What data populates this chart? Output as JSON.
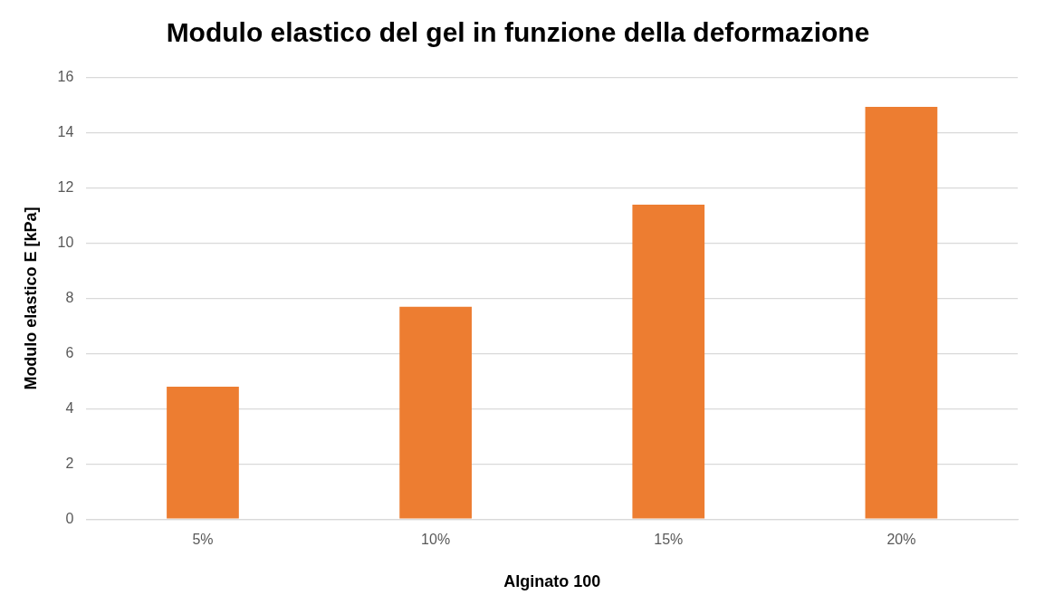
{
  "chart_data": {
    "type": "bar",
    "title": "Modulo elastico del gel in funzione della deformazione",
    "xlabel": "Alginato 100",
    "ylabel": "Modulo elastico E [kPa]",
    "categories": [
      "5%",
      "10%",
      "15%",
      "20%"
    ],
    "values": [
      4.8,
      7.7,
      11.4,
      14.95
    ],
    "color": "#ed7d31",
    "ylim": [
      0,
      16
    ],
    "yticks": [
      0,
      2,
      4,
      6,
      8,
      10,
      12,
      14,
      16
    ],
    "grid": "y",
    "legend": false
  }
}
